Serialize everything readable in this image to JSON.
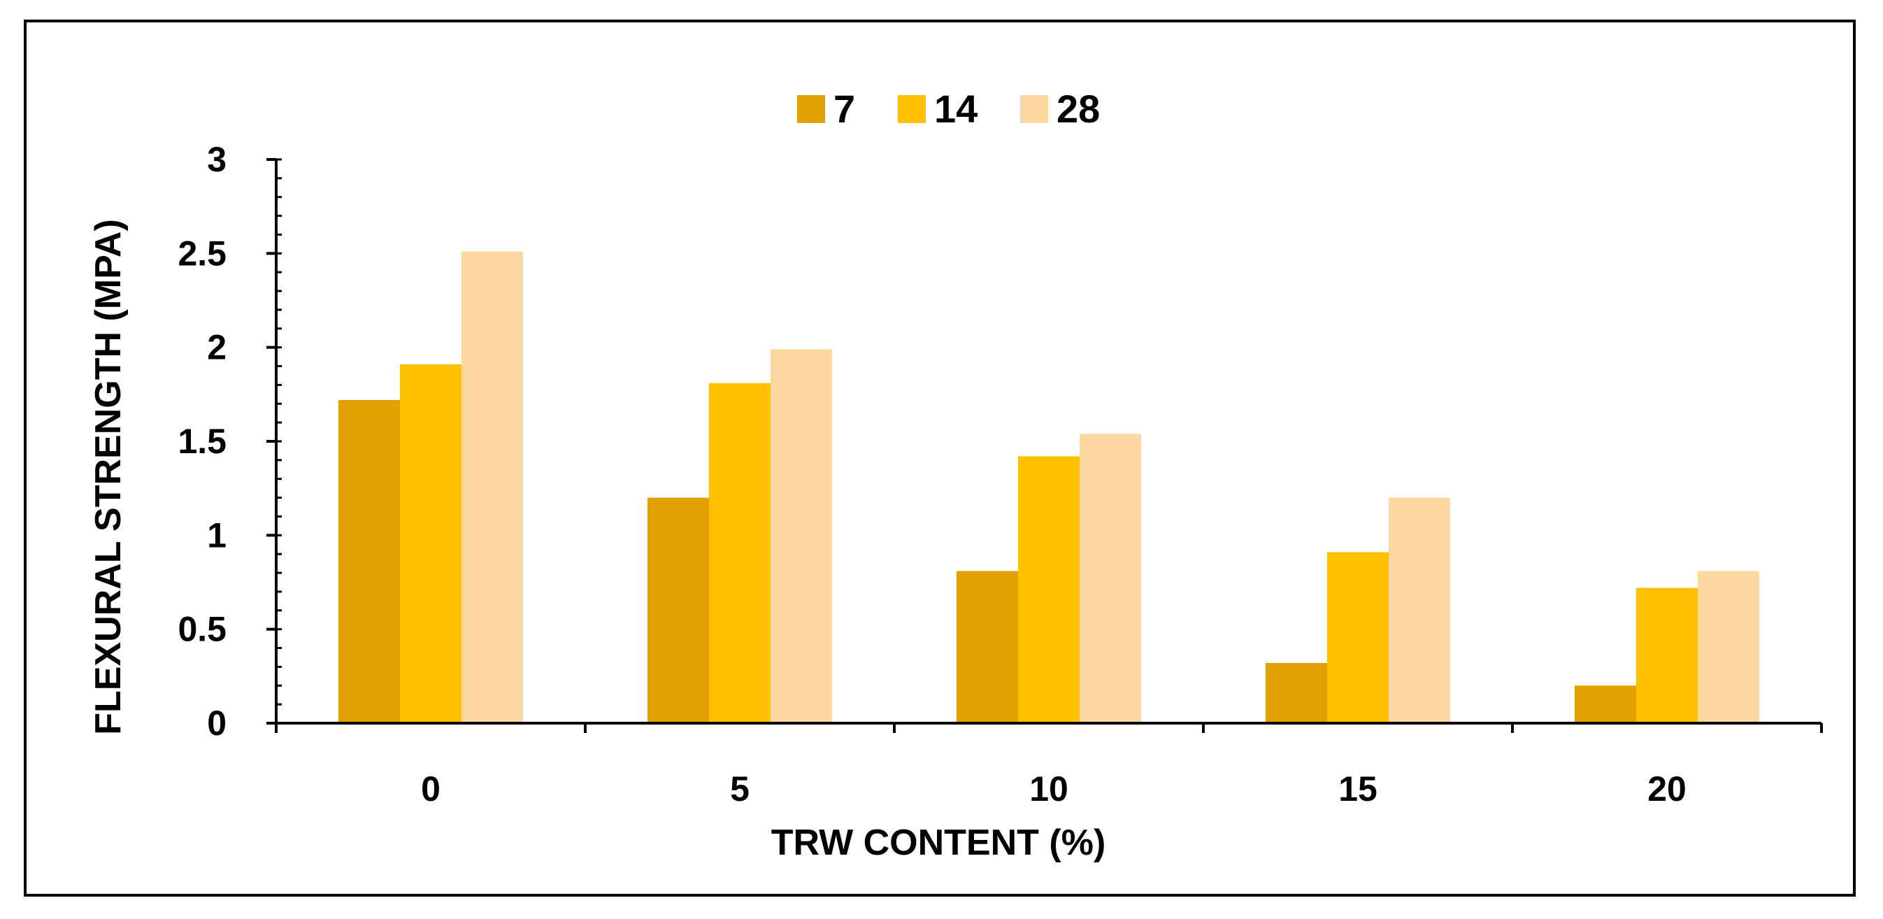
{
  "chart_data": {
    "type": "bar",
    "categories": [
      "0",
      "5",
      "10",
      "15",
      "20"
    ],
    "series": [
      {
        "name": "7",
        "values": [
          1.72,
          1.2,
          0.81,
          0.32,
          0.2
        ],
        "color": "#E2A000"
      },
      {
        "name": "14",
        "values": [
          1.91,
          1.81,
          1.42,
          0.91,
          0.72
        ],
        "color": "#FFC000"
      },
      {
        "name": "28",
        "values": [
          2.51,
          1.99,
          1.54,
          1.2,
          0.81
        ],
        "color": "#FCD7A0"
      }
    ],
    "title": "",
    "xlabel": "TRW CONTENT (%)",
    "ylabel": "FLEXURAL STRENGTH (MPA)",
    "ylim": [
      0,
      3
    ],
    "yticks": [
      "0",
      "0.5",
      "1",
      "1.5",
      "2",
      "2.5",
      "3"
    ],
    "grid": false,
    "legend_position": "top-center"
  }
}
